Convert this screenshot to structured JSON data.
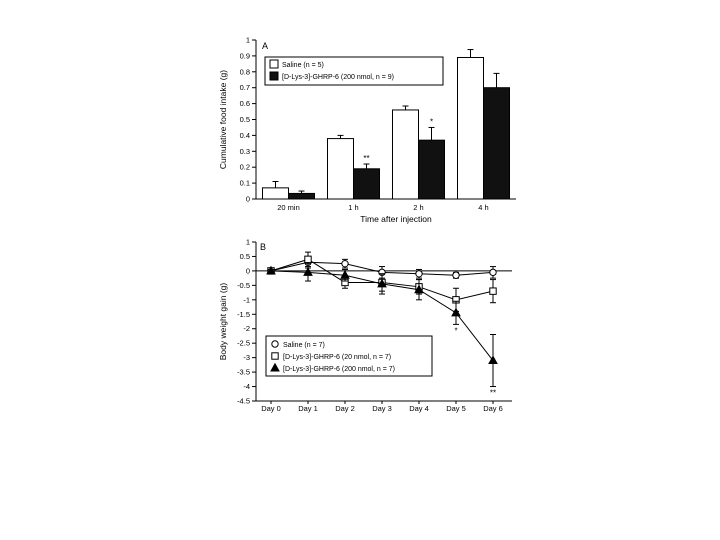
{
  "chart_data": [
    {
      "type": "bar",
      "panel": "A",
      "categories": [
        "20 min",
        "1 h",
        "2 h",
        "4 h"
      ],
      "xlabel": "Time after injection",
      "ylabel": "Cumulative food intake (g)",
      "ylim": [
        0,
        1
      ],
      "yticks": [
        "0",
        "0.1",
        "0.2",
        "0.3",
        "0.4",
        "0.5",
        "0.6",
        "0.7",
        "0.8",
        "0.9",
        "1"
      ],
      "legend_position": "top-left",
      "series": [
        {
          "name": "Saline (n = 5)",
          "fill": "white",
          "values": [
            0.07,
            0.38,
            0.56,
            0.89
          ],
          "errors": [
            0.04,
            0.02,
            0.025,
            0.05
          ]
        },
        {
          "name": "[D-Lys-3]-GHRP-6 (200 nmol, n = 9)",
          "fill": "black",
          "values": [
            0.035,
            0.19,
            0.37,
            0.7
          ],
          "errors": [
            0.015,
            0.03,
            0.08,
            0.09
          ]
        }
      ],
      "annotations": [
        {
          "category": "1 h",
          "series": 1,
          "text": "**"
        },
        {
          "category": "2 h",
          "series": 1,
          "text": "*"
        }
      ]
    },
    {
      "type": "line",
      "panel": "B",
      "categories": [
        "Day 0",
        "Day 1",
        "Day 2",
        "Day 3",
        "Day 4",
        "Day 5",
        "Day 6"
      ],
      "ylabel": "Body weight gain (g)",
      "ylim": [
        -4.5,
        1
      ],
      "yticks": [
        "1",
        "0.5",
        "0",
        "-0.5",
        "-1",
        "-1.5",
        "-2",
        "-2.5",
        "-3",
        "-3.5",
        "-4",
        "-4.5"
      ],
      "legend_position": "bottom-left",
      "series": [
        {
          "name": "Saline (n = 7)",
          "marker": "circle-open",
          "values": [
            0,
            0.3,
            0.25,
            -0.05,
            -0.1,
            -0.15,
            -0.05
          ],
          "errors": [
            0.05,
            0.2,
            0.15,
            0.2,
            0.15,
            0.1,
            0.2
          ]
        },
        {
          "name": "[D-Lys-3]-GHRP-6 (20 nmol, n = 7)",
          "marker": "square-open",
          "values": [
            0,
            0.4,
            -0.4,
            -0.4,
            -0.55,
            -1.0,
            -0.7
          ],
          "errors": [
            0.05,
            0.25,
            0.2,
            0.3,
            0.25,
            0.4,
            0.4
          ]
        },
        {
          "name": "[D-Lys-3]-GHRP-6 (200 nmol, n = 7)",
          "marker": "triangle-filled",
          "values": [
            0,
            -0.05,
            -0.15,
            -0.45,
            -0.65,
            -1.45,
            -3.1
          ],
          "errors": [
            0.05,
            0.3,
            0.2,
            0.35,
            0.35,
            0.4,
            0.9
          ]
        }
      ],
      "annotations": [
        {
          "category": "Day 5",
          "series": 2,
          "text": "*"
        },
        {
          "category": "Day 6",
          "series": 2,
          "text": "**"
        }
      ]
    }
  ]
}
